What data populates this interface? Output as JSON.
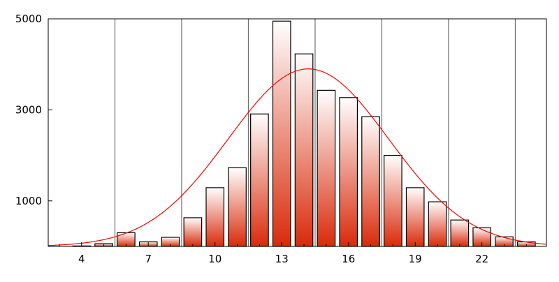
{
  "chart_data": {
    "type": "bar",
    "title": "",
    "xlabel": "",
    "ylabel": "",
    "x": [
      3,
      4,
      5,
      6,
      7,
      8,
      9,
      10,
      11,
      12,
      13,
      14,
      15,
      16,
      17,
      18,
      19,
      20,
      21,
      22,
      23,
      24
    ],
    "values": [
      0,
      10,
      60,
      300,
      100,
      200,
      630,
      1290,
      1730,
      2910,
      4950,
      4230,
      3430,
      3270,
      2850,
      2000,
      1290,
      980,
      580,
      410,
      210,
      100
    ],
    "fit_curve": {
      "type": "gaussian",
      "amplitude": 3900,
      "mean": 14.2,
      "sigma": 3.6,
      "color": "#ff0000"
    },
    "xlim": [
      2.5,
      24.9
    ],
    "ylim": [
      0,
      5000
    ],
    "xticks": [
      4,
      7,
      10,
      13,
      16,
      19,
      22
    ],
    "yticks": [
      1000,
      3000,
      5000
    ],
    "xtick_labels": [
      "4",
      "7",
      "10",
      "13",
      "16",
      "19",
      "22"
    ],
    "ytick_labels": [
      "1000",
      "3000",
      "5000"
    ],
    "vertical_grid": true,
    "vertical_gridlines_x": [
      5.5,
      8.5,
      11.5,
      14.5,
      17.5,
      20.5,
      23.5
    ],
    "bar_gradient": {
      "top": "#ffffff",
      "bottom": "#d92a0a"
    },
    "bar_edge_color": "#000000"
  }
}
